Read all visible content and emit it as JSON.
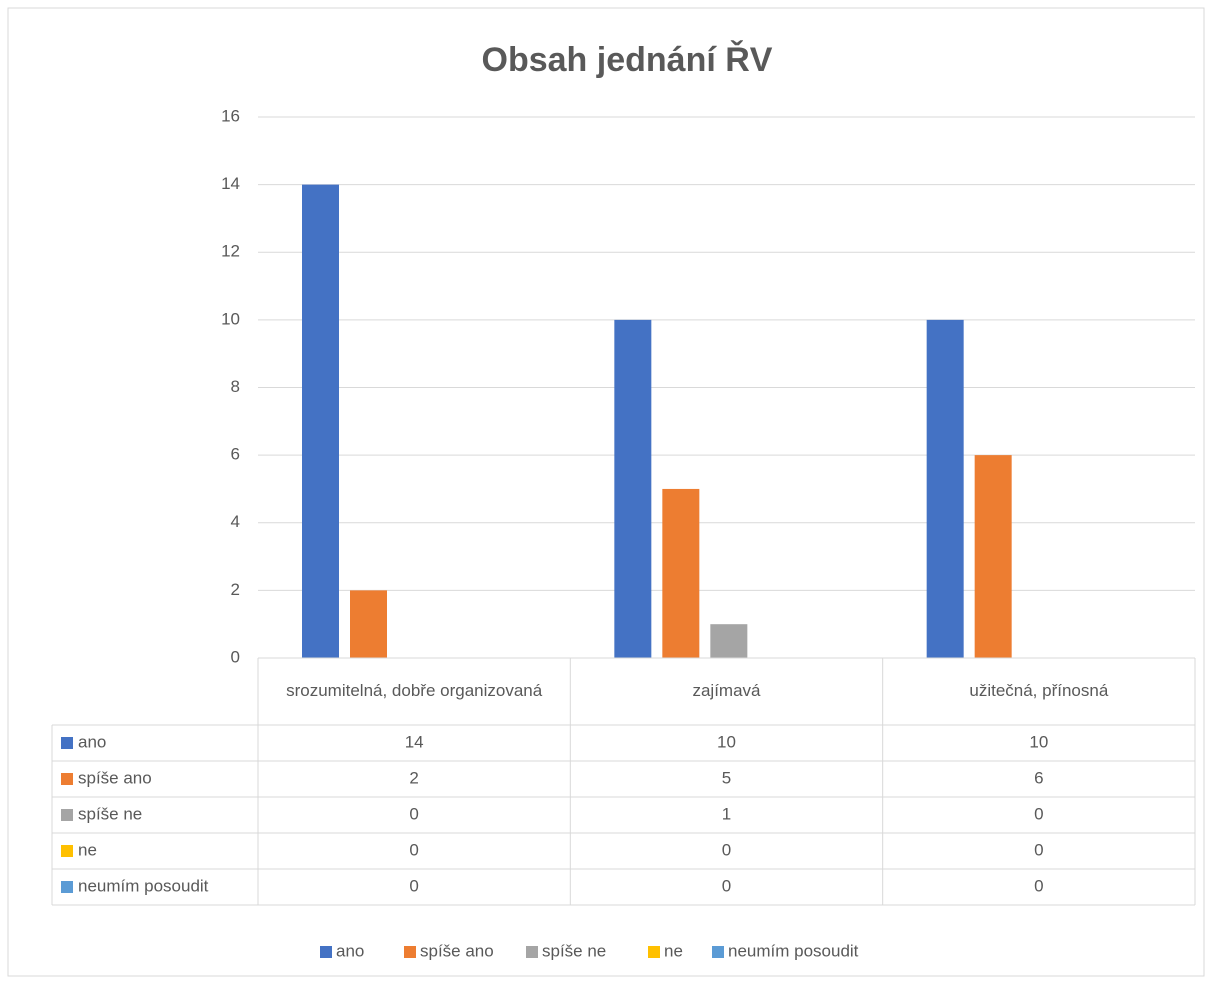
{
  "chart_data": {
    "type": "bar",
    "title": "Obsah jednání ŘV",
    "categories": [
      "srozumitelná, dobře organizovaná",
      "zajímavá",
      "užitečná, přínosná"
    ],
    "series": [
      {
        "name": "ano",
        "color": "#4472c4",
        "values": [
          14,
          10,
          10
        ]
      },
      {
        "name": "spíše ano",
        "color": "#ed7d31",
        "values": [
          2,
          5,
          6
        ]
      },
      {
        "name": "spíše ne",
        "color": "#a5a5a5",
        "values": [
          0,
          1,
          0
        ]
      },
      {
        "name": "ne",
        "color": "#ffc000",
        "values": [
          0,
          0,
          0
        ]
      },
      {
        "name": "neumím posoudit",
        "color": "#5b9bd5",
        "values": [
          0,
          0,
          0
        ]
      }
    ],
    "ylim": [
      0,
      16
    ],
    "yticks": [
      0,
      2,
      4,
      6,
      8,
      10,
      12,
      14,
      16
    ],
    "grid": true,
    "legend": "bottom"
  }
}
